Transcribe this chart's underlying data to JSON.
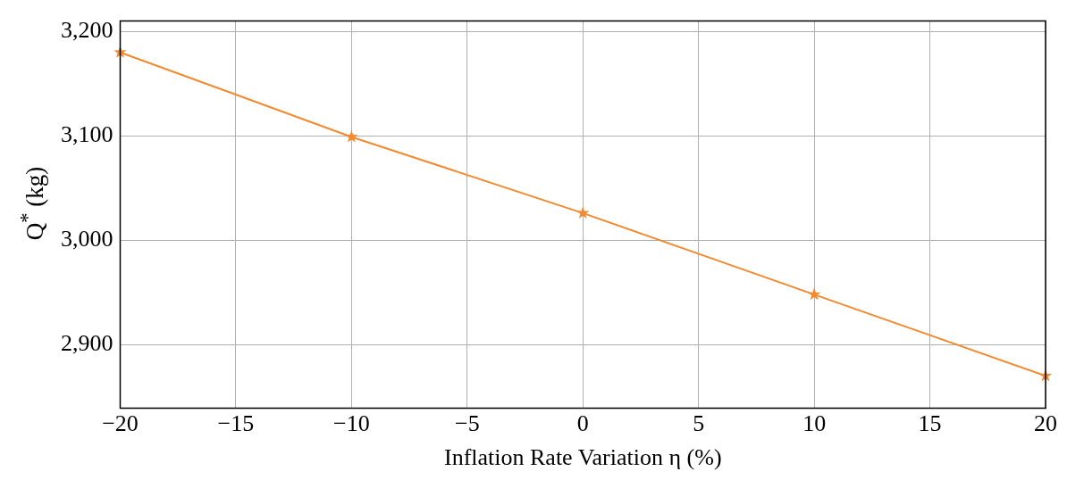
{
  "chart_data": {
    "type": "line",
    "xlabel": "Inflation Rate Variation η (%)",
    "ylabel": "Q$^{*}$ (kg)",
    "x": [
      -20,
      -10,
      0,
      10,
      20
    ],
    "series": [
      {
        "color": "#f5892f",
        "values": [
          3180,
          3099,
          3026,
          2948,
          2870
        ]
      }
    ],
    "xlim": [
      -20,
      20
    ],
    "ylim": [
      2839,
      3210
    ],
    "xticks": [
      {
        "value": -20,
        "label": "−20"
      },
      {
        "value": -15,
        "label": "−15"
      },
      {
        "value": -10,
        "label": "−10"
      },
      {
        "value": -5,
        "label": "−5"
      },
      0,
      5,
      10,
      15,
      20
    ],
    "yticks": [
      {
        "value": 2900,
        "label": "2,900"
      },
      {
        "value": 3000,
        "label": "3,000"
      },
      {
        "value": 3100,
        "label": "3,100"
      },
      {
        "value": 3200,
        "label": "3,200"
      }
    ],
    "grid": true,
    "legend": false,
    "marker": "star",
    "line_style": "solid"
  }
}
